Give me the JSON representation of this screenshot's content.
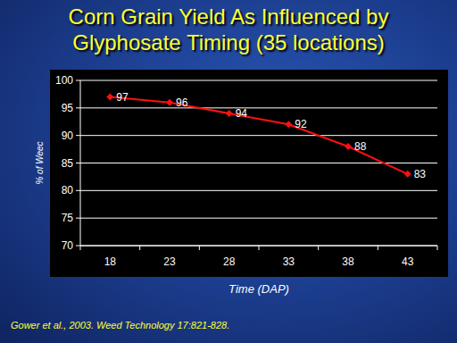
{
  "chart_data": {
    "type": "line",
    "title": "Corn Grain Yield As Influenced by Glyphosate Timing (35 locations)",
    "xlabel": "Time (DAP)",
    "ylabel": "% of Weec",
    "source": "Gower et al., 2003.  Weed Technology 17:821-828.",
    "categories": [
      "18",
      "23",
      "28",
      "33",
      "38",
      "43"
    ],
    "values": [
      97,
      96,
      94,
      92,
      88,
      83
    ],
    "color": "#ff1010",
    "marker": "diamond",
    "ylim": [
      70,
      100
    ],
    "yticks": [
      70,
      75,
      80,
      85,
      90,
      95,
      100
    ],
    "grid": true,
    "data_labels": true
  }
}
